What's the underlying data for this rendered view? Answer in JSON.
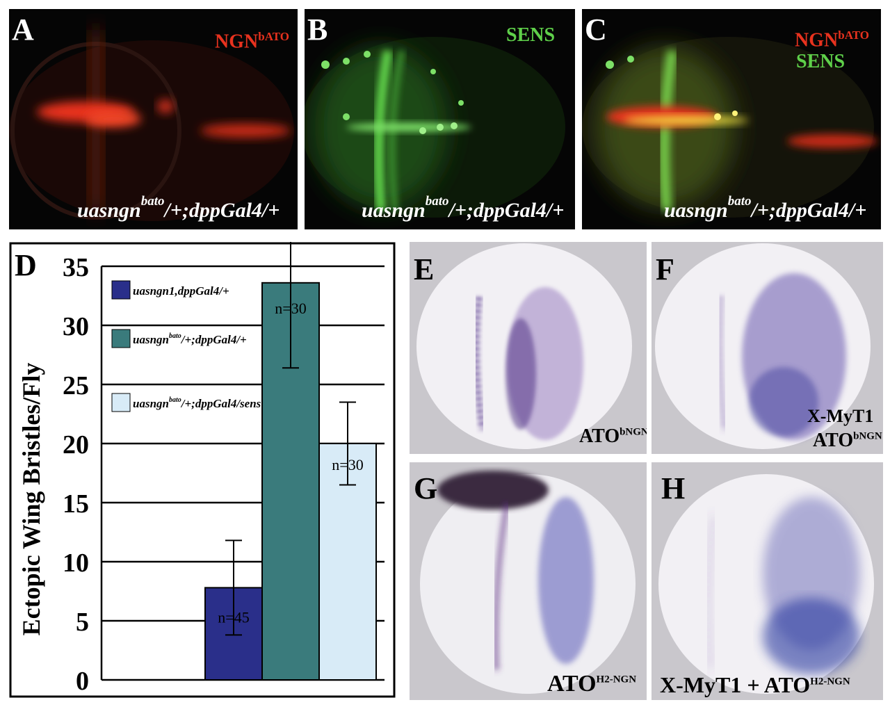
{
  "panels": {
    "A": {
      "letter": "A",
      "stain_main": "NGN",
      "stain_sup": "bATO",
      "genotype_main": "uasngn",
      "genotype_sup": "bato",
      "genotype_rest": "/+;dppGal4/+",
      "colors": {
        "red": "#e8321e"
      }
    },
    "B": {
      "letter": "B",
      "stain_main": "SENS",
      "genotype_main": "uasngn",
      "genotype_sup": "bato",
      "genotype_rest": "/+;dppGal4/+",
      "colors": {
        "green": "#5fd04a"
      }
    },
    "C": {
      "letter": "C",
      "stain_main": "NGN",
      "stain_sup": "bATO",
      "stain_second": "SENS",
      "genotype_main": "uasngn",
      "genotype_sup": "bato",
      "genotype_rest": "/+;dppGal4/+"
    },
    "E": {
      "letter": "E",
      "label_main": "ATO",
      "label_sup": "bNGN"
    },
    "F": {
      "letter": "F",
      "label_line1": "X-MyT1",
      "label_main": "ATO",
      "label_sup": "bNGN"
    },
    "G": {
      "letter": "G",
      "label_main": "ATO",
      "label_sup": "H2-NGN"
    },
    "H": {
      "letter": "H",
      "label_main": "X-MyT1 + ATO",
      "label_sup": "H2-NGN"
    }
  },
  "chart_data": {
    "type": "bar",
    "panel_letter": "D",
    "ylabel": "Ectopic Wing Bristles/Fly",
    "ylim": [
      0,
      35
    ],
    "yticks": [
      0,
      5,
      10,
      15,
      20,
      25,
      30,
      35
    ],
    "grid": true,
    "series": [
      {
        "legend_main": "uasngn1,dppGal4/+",
        "legend_sup": "",
        "legend_rest": "",
        "value": 7.8,
        "error": 4.0,
        "n_label": "n=45",
        "color": "#2a2f8a"
      },
      {
        "legend_main": "uasngn",
        "legend_sup": "bato",
        "legend_rest": "/+;dppGal4/+",
        "value": 33.6,
        "error": 7.2,
        "n_label": "n=30",
        "color": "#3a7b7c"
      },
      {
        "legend_main": "uasngn",
        "legend_sup": "bato",
        "legend_rest": "/+;dppGal4/sens",
        "value": 20.0,
        "error": 3.5,
        "n_label": "n=30",
        "color": "#d8ebf7"
      }
    ]
  }
}
